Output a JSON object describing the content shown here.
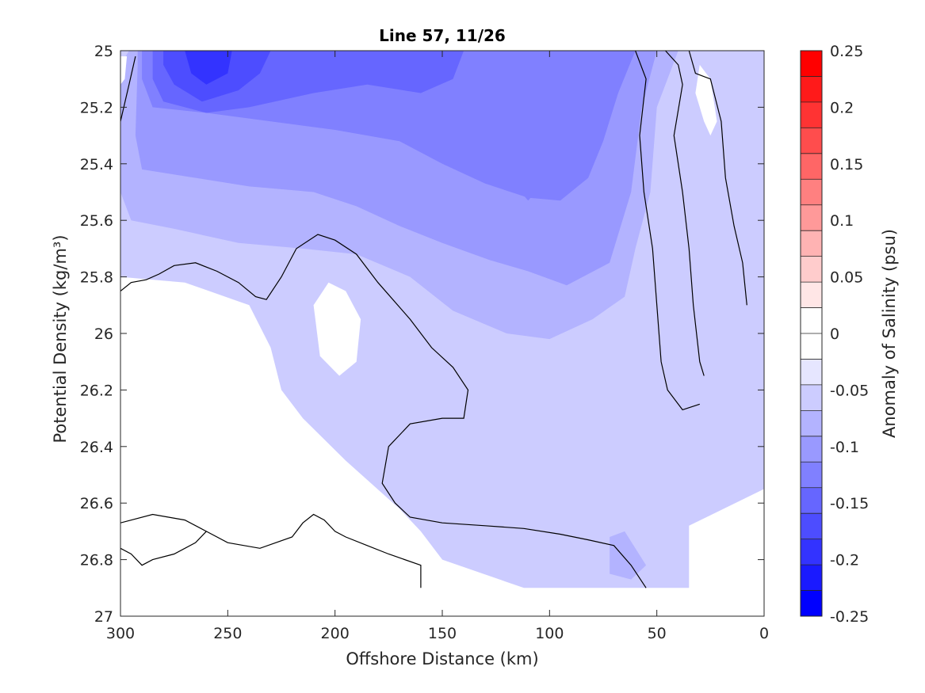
{
  "chart_data": {
    "type": "heatmap",
    "subtype": "filled-contour",
    "title": "Line 57, 11/26",
    "xlabel": "Offshore Distance (km)",
    "ylabel": "Potential Density (kg/m³)",
    "xlim": [
      300,
      0
    ],
    "x_reversed": true,
    "ylim": [
      25,
      27
    ],
    "y_reversed": true,
    "x_ticks": [
      "300",
      "250",
      "200",
      "150",
      "100",
      "50",
      "0"
    ],
    "y_ticks": [
      "25",
      "25.2",
      "25.4",
      "25.6",
      "25.8",
      "26",
      "26.2",
      "26.4",
      "26.6",
      "26.8",
      "27"
    ],
    "colorbar": {
      "label": "Anomaly of Salinity (psu)",
      "range": [
        -0.25,
        0.25
      ],
      "ticks": [
        "0.25",
        "0.2",
        "0.15",
        "0.1",
        "0.05",
        "0",
        "-0.05",
        "-0.1",
        "-0.15",
        "-0.2",
        "-0.25"
      ],
      "levels": [
        -0.25,
        -0.225,
        -0.2,
        -0.175,
        -0.15,
        -0.125,
        -0.1,
        -0.075,
        -0.05,
        -0.025,
        0,
        0.025,
        0.05,
        0.075,
        0.1,
        0.125,
        0.15,
        0.175,
        0.2,
        0.225,
        0.25
      ],
      "colors": [
        "#0000ff",
        "#1a1aff",
        "#3333ff",
        "#4d4dff",
        "#6666ff",
        "#8080ff",
        "#9999ff",
        "#b3b3ff",
        "#ccccff",
        "#e6e6ff",
        "#ffffff",
        "#ffffff",
        "#ffe6e6",
        "#ffcccc",
        "#ffb3b3",
        "#ff9999",
        "#ff8080",
        "#ff6666",
        "#ff4d4d",
        "#ff3333",
        "#ff1a1a",
        "#ff0000"
      ]
    },
    "regions": [
      {
        "anomaly_band": [
          -0.05,
          -0.025
        ],
        "points": [
          [
            300,
            25
          ],
          [
            0,
            25
          ],
          [
            0,
            26.55
          ],
          [
            35,
            26.68
          ],
          [
            35,
            26.9
          ],
          [
            112,
            26.9
          ],
          [
            150,
            26.8
          ],
          [
            160,
            26.7
          ],
          [
            170,
            26.62
          ],
          [
            195,
            26.45
          ],
          [
            215,
            26.3
          ],
          [
            225,
            26.2
          ],
          [
            230,
            26.05
          ],
          [
            240,
            25.9
          ],
          [
            270,
            25.82
          ],
          [
            300,
            25.8
          ]
        ]
      },
      {
        "anomaly_band": [
          -0.075,
          -0.05
        ],
        "points": [
          [
            296,
            25
          ],
          [
            40,
            25
          ],
          [
            50,
            25.2
          ],
          [
            53,
            25.5
          ],
          [
            60,
            25.7
          ],
          [
            65,
            25.87
          ],
          [
            80,
            25.95
          ],
          [
            100,
            26.02
          ],
          [
            120,
            26.0
          ],
          [
            145,
            25.92
          ],
          [
            165,
            25.8
          ],
          [
            190,
            25.72
          ],
          [
            215,
            25.7
          ],
          [
            245,
            25.68
          ],
          [
            275,
            25.63
          ],
          [
            295,
            25.6
          ],
          [
            300,
            25.5
          ],
          [
            300,
            25.05
          ]
        ]
      },
      {
        "anomaly_band": [
          -0.1,
          -0.075
        ],
        "points": [
          [
            292,
            25
          ],
          [
            50,
            25
          ],
          [
            57,
            25.2
          ],
          [
            62,
            25.5
          ],
          [
            72,
            25.75
          ],
          [
            92,
            25.83
          ],
          [
            110,
            25.78
          ],
          [
            128,
            25.74
          ],
          [
            150,
            25.68
          ],
          [
            170,
            25.62
          ],
          [
            190,
            25.55
          ],
          [
            210,
            25.5
          ],
          [
            240,
            25.48
          ],
          [
            265,
            25.45
          ],
          [
            290,
            25.42
          ],
          [
            293,
            25.3
          ],
          [
            292,
            25.05
          ]
        ]
      },
      {
        "anomaly_band": [
          -0.125,
          -0.1
        ],
        "points": [
          [
            290,
            25
          ],
          [
            60,
            25
          ],
          [
            68,
            25.15
          ],
          [
            75,
            25.32
          ],
          [
            82,
            25.45
          ],
          [
            95,
            25.53
          ],
          [
            110,
            25.52
          ],
          [
            130,
            25.47
          ],
          [
            150,
            25.4
          ],
          [
            170,
            25.32
          ],
          [
            200,
            25.28
          ],
          [
            230,
            25.25
          ],
          [
            260,
            25.22
          ],
          [
            285,
            25.2
          ],
          [
            290,
            25.1
          ]
        ]
      },
      {
        "anomaly_band": [
          -0.15,
          -0.125
        ],
        "points": [
          [
            285,
            25
          ],
          [
            140,
            25
          ],
          [
            145,
            25.1
          ],
          [
            160,
            25.15
          ],
          [
            185,
            25.12
          ],
          [
            210,
            25.15
          ],
          [
            240,
            25.2
          ],
          [
            260,
            25.22
          ],
          [
            280,
            25.18
          ],
          [
            285,
            25.1
          ]
        ]
      },
      {
        "anomaly_band": [
          -0.125,
          -0.1
        ],
        "points": [
          [
            130,
            25
          ],
          [
            95,
            25
          ],
          [
            90,
            25.2
          ],
          [
            95,
            25.4
          ],
          [
            110,
            25.53
          ],
          [
            125,
            25.4
          ],
          [
            133,
            25.2
          ]
        ]
      },
      {
        "anomaly_band": [
          -0.175,
          -0.15
        ],
        "points": [
          [
            280,
            25
          ],
          [
            230,
            25
          ],
          [
            235,
            25.08
          ],
          [
            245,
            25.14
          ],
          [
            262,
            25.18
          ],
          [
            275,
            25.12
          ],
          [
            280,
            25.05
          ]
        ]
      },
      {
        "anomaly_band": [
          -0.2,
          -0.175
        ],
        "points": [
          [
            270,
            25
          ],
          [
            248,
            25
          ],
          [
            250,
            25.08
          ],
          [
            260,
            25.12
          ],
          [
            267,
            25.08
          ]
        ]
      },
      {
        "anomaly_band": [
          -0.075,
          -0.05
        ],
        "points": [
          [
            72,
            26.72
          ],
          [
            65,
            26.7
          ],
          [
            55,
            26.82
          ],
          [
            62,
            26.87
          ],
          [
            72,
            26.85
          ]
        ]
      },
      {
        "anomaly_band": [
          0.025,
          0.05
        ],
        "points": [
          [
            210,
            25.9
          ],
          [
            203,
            25.82
          ],
          [
            195,
            25.85
          ],
          [
            188,
            25.95
          ],
          [
            190,
            26.1
          ],
          [
            198,
            26.15
          ],
          [
            207,
            26.08
          ]
        ]
      },
      {
        "anomaly_band": [
          0.025,
          0.05
        ],
        "points": [
          [
            300,
            26.05
          ],
          [
            292,
            26.15
          ],
          [
            285,
            26.18
          ],
          [
            280,
            26.2
          ],
          [
            282,
            26.3
          ],
          [
            290,
            26.45
          ],
          [
            295,
            26.6
          ],
          [
            300,
            26.62
          ]
        ]
      },
      {
        "anomaly_band": [
          0.025,
          0.05
        ],
        "points": [
          [
            30,
            25.05
          ],
          [
            25,
            25.1
          ],
          [
            22,
            25.25
          ],
          [
            25,
            25.3
          ],
          [
            28,
            25.25
          ],
          [
            32,
            25.15
          ]
        ]
      },
      {
        "anomaly_band": [
          0.025,
          0.05
        ],
        "points": [
          [
            300,
            25.02
          ],
          [
            297,
            25.02
          ],
          [
            298,
            25.1
          ],
          [
            300,
            25.12
          ]
        ]
      }
    ],
    "zero_contours": [
      [
        [
          300,
          25.85
        ],
        [
          295,
          25.82
        ],
        [
          288,
          25.81
        ],
        [
          282,
          25.79
        ],
        [
          275,
          25.76
        ],
        [
          265,
          25.75
        ],
        [
          255,
          25.78
        ],
        [
          245,
          25.82
        ],
        [
          237,
          25.87
        ],
        [
          232,
          25.88
        ],
        [
          225,
          25.8
        ],
        [
          218,
          25.7
        ],
        [
          208,
          25.65
        ],
        [
          200,
          25.67
        ],
        [
          190,
          25.72
        ],
        [
          180,
          25.82
        ],
        [
          165,
          25.95
        ],
        [
          155,
          26.05
        ],
        [
          145,
          26.12
        ],
        [
          138,
          26.2
        ],
        [
          140,
          26.3
        ],
        [
          150,
          26.3
        ],
        [
          165,
          26.32
        ],
        [
          175,
          26.4
        ],
        [
          178,
          26.53
        ],
        [
          172,
          26.6
        ],
        [
          165,
          26.65
        ],
        [
          150,
          26.67
        ],
        [
          130,
          26.68
        ],
        [
          112,
          26.69
        ],
        [
          95,
          26.71
        ],
        [
          82,
          26.73
        ],
        [
          70,
          26.75
        ],
        [
          62,
          26.82
        ],
        [
          55,
          26.9
        ]
      ],
      [
        [
          300,
          26.67
        ],
        [
          285,
          26.64
        ],
        [
          270,
          26.66
        ],
        [
          260,
          26.7
        ],
        [
          250,
          26.74
        ],
        [
          235,
          26.76
        ],
        [
          220,
          26.72
        ],
        [
          215,
          26.67
        ],
        [
          210,
          26.64
        ],
        [
          205,
          26.66
        ],
        [
          200,
          26.7
        ],
        [
          195,
          26.72
        ],
        [
          185,
          26.75
        ],
        [
          175,
          26.78
        ],
        [
          160,
          26.82
        ],
        [
          160,
          26.9
        ]
      ],
      [
        [
          300,
          26.76
        ],
        [
          295,
          26.78
        ],
        [
          290,
          26.82
        ],
        [
          285,
          26.8
        ],
        [
          275,
          26.78
        ],
        [
          265,
          26.74
        ],
        [
          260,
          26.7
        ]
      ],
      [
        [
          60,
          25.0
        ],
        [
          55,
          25.1
        ],
        [
          58,
          25.3
        ],
        [
          56,
          25.5
        ],
        [
          52,
          25.7
        ],
        [
          50,
          25.9
        ],
        [
          48,
          26.1
        ],
        [
          45,
          26.2
        ],
        [
          38,
          26.27
        ],
        [
          30,
          26.25
        ]
      ],
      [
        [
          46,
          25.0
        ],
        [
          40,
          25.05
        ],
        [
          38,
          25.12
        ],
        [
          42,
          25.3
        ],
        [
          38,
          25.5
        ],
        [
          35,
          25.7
        ],
        [
          33,
          25.9
        ],
        [
          30,
          26.1
        ],
        [
          28,
          26.15
        ]
      ],
      [
        [
          35,
          25.0
        ],
        [
          32,
          25.08
        ],
        [
          25,
          25.1
        ],
        [
          20,
          25.25
        ],
        [
          18,
          25.45
        ],
        [
          14,
          25.62
        ],
        [
          10,
          25.75
        ],
        [
          8,
          25.9
        ]
      ],
      [
        [
          300,
          25.25
        ],
        [
          296,
          25.12
        ],
        [
          293,
          25.02
        ]
      ]
    ]
  }
}
